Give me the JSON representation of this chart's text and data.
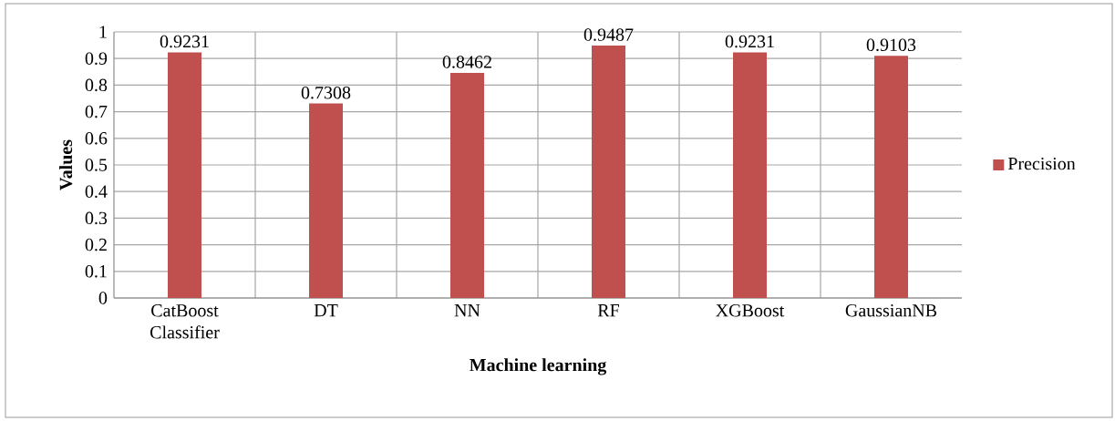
{
  "chart_data": {
    "type": "bar",
    "xlabel": "Machine learning",
    "ylabel": "Values",
    "categories": [
      "CatBoost Classifier",
      "DT",
      "NN",
      "RF",
      "XGBoost",
      "GaussianNB"
    ],
    "series": [
      {
        "name": "Precision",
        "color": "#c0504d",
        "values": [
          0.9231,
          0.7308,
          0.8462,
          0.9487,
          0.9231,
          0.9103
        ]
      }
    ],
    "ylim": [
      0,
      1
    ],
    "yticks": [
      0,
      0.1,
      0.2,
      0.3,
      0.4,
      0.5,
      0.6,
      0.7,
      0.8,
      0.9,
      1
    ],
    "grid": true,
    "legend": "right",
    "data_labels": true
  }
}
